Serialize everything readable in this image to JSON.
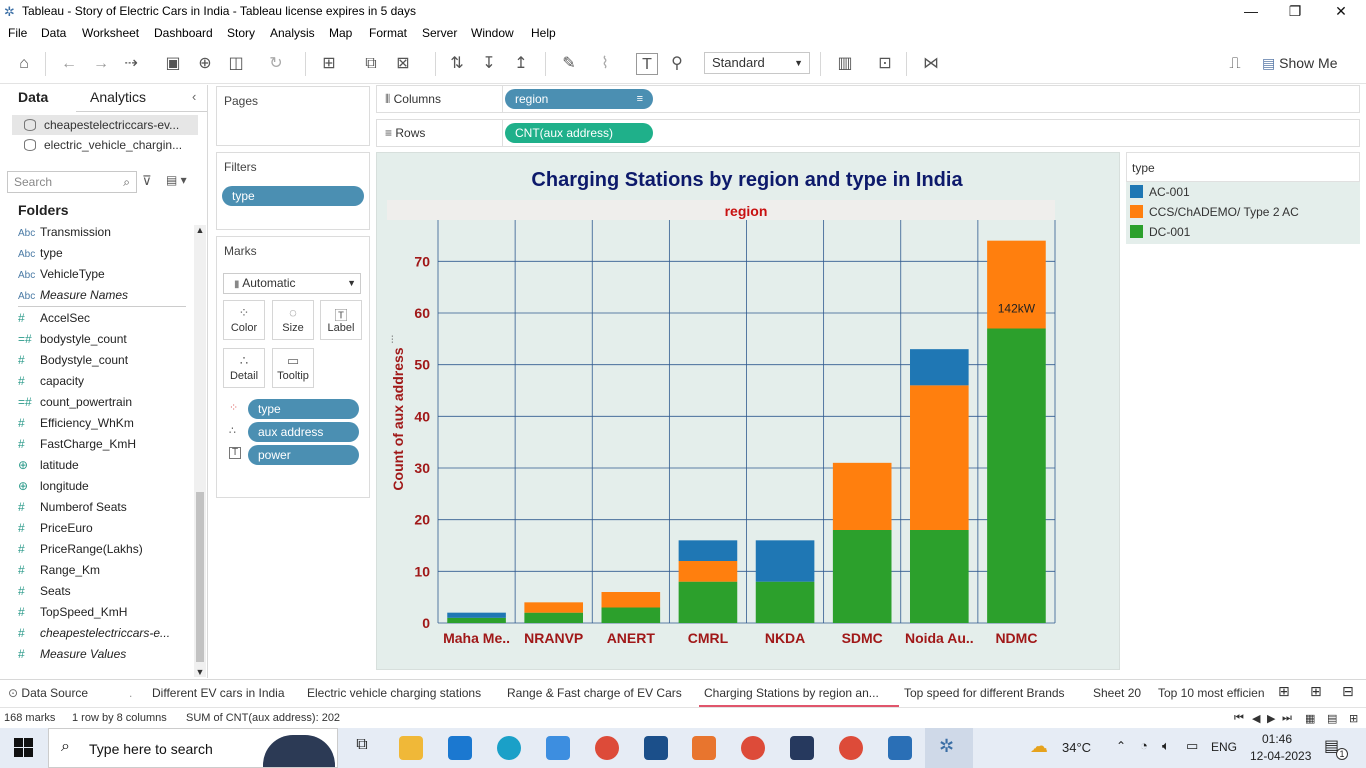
{
  "window": {
    "title": "Tableau - Story of Electric Cars in India - Tableau license expires in 5 days"
  },
  "menu": [
    "File",
    "Data",
    "Worksheet",
    "Dashboard",
    "Story",
    "Analysis",
    "Map",
    "Format",
    "Server",
    "Window",
    "Help"
  ],
  "toolbar": {
    "fit_mode": "Standard",
    "show_me": "Show Me"
  },
  "data_pane": {
    "tabs": [
      "Data",
      "Analytics"
    ],
    "datasources": [
      "cheapestelectriccars-ev...",
      "electric_vehicle_chargin..."
    ],
    "search_placeholder": "Search",
    "folders_label": "Folders",
    "fields": [
      {
        "icon": "Abc",
        "name": "Transmission",
        "italic": false
      },
      {
        "icon": "Abc",
        "name": "type",
        "italic": false
      },
      {
        "icon": "Abc",
        "name": "VehicleType",
        "italic": false
      },
      {
        "icon": "Abc",
        "name": "Measure Names",
        "italic": true
      },
      {
        "icon": "#",
        "name": "AccelSec",
        "italic": false
      },
      {
        "icon": "=#",
        "name": "bodystyle_count",
        "italic": false
      },
      {
        "icon": "#",
        "name": "Bodystyle_count",
        "italic": false
      },
      {
        "icon": "#",
        "name": "capacity",
        "italic": false
      },
      {
        "icon": "=#",
        "name": "count_powertrain",
        "italic": false
      },
      {
        "icon": "#",
        "name": "Efficiency_WhKm",
        "italic": false
      },
      {
        "icon": "#",
        "name": "FastCharge_KmH",
        "italic": false
      },
      {
        "icon": "globe",
        "name": "latitude",
        "italic": false
      },
      {
        "icon": "globe",
        "name": "longitude",
        "italic": false
      },
      {
        "icon": "#",
        "name": "Numberof Seats",
        "italic": false
      },
      {
        "icon": "#",
        "name": "PriceEuro",
        "italic": false
      },
      {
        "icon": "#",
        "name": "PriceRange(Lakhs)",
        "italic": false
      },
      {
        "icon": "#",
        "name": "Range_Km",
        "italic": false
      },
      {
        "icon": "#",
        "name": "Seats",
        "italic": false
      },
      {
        "icon": "#",
        "name": "TopSpeed_KmH",
        "italic": false
      },
      {
        "icon": "#",
        "name": "cheapestelectriccars-e...",
        "italic": true
      },
      {
        "icon": "#",
        "name": "Measure Values",
        "italic": true
      }
    ]
  },
  "cards": {
    "pages": "Pages",
    "filters": "Filters",
    "filter_pill": "type",
    "marks": "Marks",
    "mark_type": "Automatic",
    "mark_buttons": [
      "Color",
      "Size",
      "Label",
      "Detail",
      "Tooltip"
    ],
    "mark_pills": [
      "type",
      "aux address",
      "power"
    ]
  },
  "shelves": {
    "columns_label": "Columns",
    "columns_pill": "region",
    "rows_label": "Rows",
    "rows_pill": "CNT(aux address)"
  },
  "legend": {
    "title": "type",
    "items": [
      {
        "label": "AC-001",
        "color": "#1f77b4"
      },
      {
        "label": "CCS/ChADEMO/ Type 2 AC",
        "color": "#ff7f0e"
      },
      {
        "label": "DC-001",
        "color": "#2ca02c"
      }
    ]
  },
  "chart_data": {
    "type": "bar",
    "stacked": true,
    "title": "Charging Stations by region and type in India",
    "column_header": "region",
    "xlabel": "",
    "ylabel": "Count of aux address",
    "ylim": [
      0,
      78
    ],
    "yticks": [
      0,
      10,
      20,
      30,
      40,
      50,
      60,
      70
    ],
    "categories": [
      "Maha Me..",
      "NRANVP",
      "ANERT",
      "CMRL",
      "NKDA",
      "SDMC",
      "Noida Au..",
      "NDMC"
    ],
    "series": [
      {
        "name": "DC-001",
        "color": "#2ca02c",
        "values": [
          1,
          2,
          3,
          8,
          8,
          18,
          18,
          57
        ]
      },
      {
        "name": "CCS/ChADEMO/ Type 2 AC",
        "color": "#ff7f0e",
        "values": [
          0,
          2,
          3,
          4,
          0,
          13,
          28,
          17
        ]
      },
      {
        "name": "AC-001",
        "color": "#1f77b4",
        "values": [
          1,
          0,
          0,
          4,
          8,
          0,
          7,
          0
        ]
      }
    ],
    "annotations": [
      {
        "category": "NDMC",
        "text": "142kW"
      }
    ]
  },
  "sheet_tabs": [
    "Data Source",
    "Different EV cars in India",
    "Electric vehicle charging stations",
    "Range & Fast charge of EV Cars",
    "Charging Stations by region an...",
    "Top speed for different Brands",
    "Sheet 20",
    "Top 10 most efficien"
  ],
  "status": {
    "marks": "168 marks",
    "dims": "1 row by 8 columns",
    "sum": "SUM of CNT(aux address): 202"
  },
  "taskbar": {
    "search_placeholder": "Type here to search",
    "temperature": "34°C",
    "language": "ENG",
    "time": "01:46",
    "date": "12-04-2023",
    "notifications": "1"
  }
}
